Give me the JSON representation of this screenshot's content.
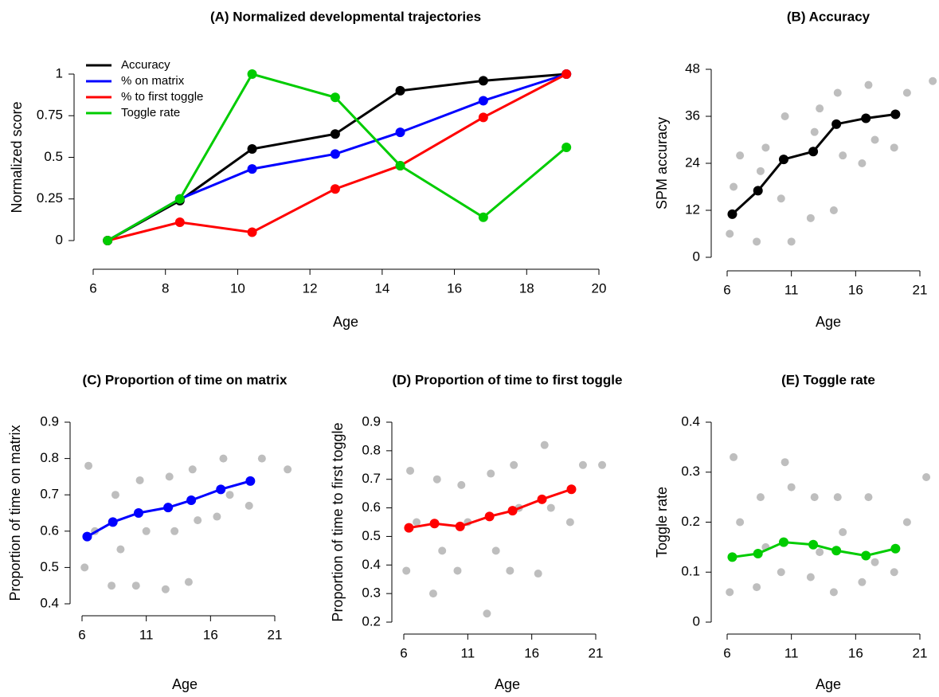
{
  "chart_data": [
    {
      "type": "line",
      "title": "(A) Normalized developmental trajectories",
      "xlabel": "Age",
      "ylabel": "Normalized score",
      "x": [
        6.4,
        8.4,
        10.4,
        12.7,
        14.5,
        16.8,
        19.1
      ],
      "series": [
        {
          "name": "Accuracy",
          "color": "#000000",
          "values": [
            0,
            0.24,
            0.55,
            0.64,
            0.9,
            0.96,
            1
          ]
        },
        {
          "name": "% on matrix",
          "color": "#0000ff",
          "values": [
            0,
            0.25,
            0.43,
            0.52,
            0.65,
            0.84,
            1
          ]
        },
        {
          "name": "% to first toggle",
          "color": "#ff0000",
          "values": [
            0,
            0.11,
            0.05,
            0.31,
            0.45,
            0.74,
            1
          ]
        },
        {
          "name": "Toggle rate",
          "color": "#00cc00",
          "values": [
            0,
            0.25,
            1,
            0.86,
            0.45,
            0.14,
            0.56
          ]
        }
      ],
      "xlim": [
        6,
        20
      ],
      "xticks": [
        6,
        8,
        10,
        12,
        14,
        16,
        18,
        20
      ],
      "ylim": [
        0,
        1
      ],
      "yticks": [
        0,
        0.25,
        0.5,
        0.75,
        1
      ],
      "legend": "top-left"
    },
    {
      "type": "scatter",
      "title": "(B) Accuracy",
      "xlabel": "Age",
      "ylabel": "SPM accuracy",
      "points": {
        "color": "#bebebe",
        "x": [
          6.2,
          6.5,
          7,
          8.3,
          8.6,
          9,
          10.2,
          10.5,
          11,
          12.5,
          12.8,
          13.2,
          14.3,
          14.6,
          15,
          16.5,
          17,
          17.5,
          19,
          20,
          22
        ],
        "values": [
          6,
          18,
          26,
          4,
          22,
          28,
          15,
          36,
          4,
          10,
          32,
          38,
          12,
          42,
          26,
          24,
          44,
          30,
          28,
          42,
          45
        ]
      },
      "x": [
        6.4,
        8.4,
        10.4,
        12.7,
        14.5,
        16.8,
        19.1
      ],
      "series": [
        {
          "color": "#000000",
          "values": [
            11,
            17,
            25,
            27,
            34,
            35.5,
            36.5
          ]
        }
      ],
      "xlim": [
        6,
        21
      ],
      "xticks": [
        6,
        11,
        16,
        21
      ],
      "ylim": [
        0,
        48
      ],
      "yticks": [
        0,
        12,
        24,
        36,
        48
      ]
    },
    {
      "type": "scatter",
      "title": "(C) Proportion of time on matrix",
      "xlabel": "Age",
      "ylabel": "Proportion of time on matrix",
      "points": {
        "color": "#bebebe",
        "x": [
          6.2,
          6.5,
          7,
          8.3,
          8.6,
          9,
          10.2,
          10.5,
          11,
          12.5,
          12.8,
          13.2,
          14.3,
          14.6,
          15,
          16.5,
          17,
          17.5,
          19,
          20,
          22
        ],
        "values": [
          0.5,
          0.78,
          0.6,
          0.45,
          0.7,
          0.55,
          0.45,
          0.74,
          0.6,
          0.44,
          0.75,
          0.6,
          0.46,
          0.77,
          0.63,
          0.64,
          0.8,
          0.7,
          0.67,
          0.8,
          0.77
        ]
      },
      "x": [
        6.4,
        8.4,
        10.4,
        12.7,
        14.5,
        16.8,
        19.1
      ],
      "series": [
        {
          "color": "#0000ff",
          "values": [
            0.585,
            0.625,
            0.65,
            0.665,
            0.685,
            0.715,
            0.738
          ]
        }
      ],
      "xlim": [
        6,
        21
      ],
      "xticks": [
        6,
        11,
        16,
        21
      ],
      "ylim": [
        0.4,
        0.9
      ],
      "yticks": [
        0.4,
        0.5,
        0.6,
        0.7,
        0.8,
        0.9
      ]
    },
    {
      "type": "scatter",
      "title": "(D) Proportion of time to first toggle",
      "xlabel": "Age",
      "ylabel": "Proportion of time to first toggle",
      "points": {
        "color": "#bebebe",
        "x": [
          6.2,
          6.5,
          7,
          8.3,
          8.6,
          9,
          10.2,
          10.5,
          11,
          12.5,
          12.8,
          13.2,
          14.3,
          14.6,
          15,
          16.5,
          17,
          17.5,
          19,
          20,
          21.5
        ],
        "values": [
          0.38,
          0.73,
          0.55,
          0.3,
          0.7,
          0.45,
          0.38,
          0.68,
          0.55,
          0.23,
          0.72,
          0.45,
          0.38,
          0.75,
          0.6,
          0.37,
          0.82,
          0.6,
          0.55,
          0.75,
          0.75
        ]
      },
      "x": [
        6.4,
        8.4,
        10.4,
        12.7,
        14.5,
        16.8,
        19.1
      ],
      "series": [
        {
          "color": "#ff0000",
          "values": [
            0.53,
            0.545,
            0.535,
            0.57,
            0.59,
            0.63,
            0.665
          ]
        }
      ],
      "xlim": [
        6,
        21
      ],
      "xticks": [
        6,
        11,
        16,
        21
      ],
      "ylim": [
        0.2,
        0.9
      ],
      "yticks": [
        0.2,
        0.3,
        0.4,
        0.5,
        0.6,
        0.7,
        0.8,
        0.9
      ]
    },
    {
      "type": "scatter",
      "title": "(E) Toggle rate",
      "xlabel": "Age",
      "ylabel": "Toggle rate",
      "points": {
        "color": "#bebebe",
        "x": [
          6.2,
          6.5,
          7,
          8.3,
          8.6,
          9,
          10.2,
          10.5,
          11,
          12.5,
          12.8,
          13.2,
          14.3,
          14.6,
          15,
          16.5,
          17,
          17.5,
          19,
          20,
          21.5
        ],
        "values": [
          0.06,
          0.33,
          0.2,
          0.07,
          0.25,
          0.15,
          0.1,
          0.32,
          0.27,
          0.09,
          0.25,
          0.14,
          0.06,
          0.25,
          0.18,
          0.08,
          0.25,
          0.12,
          0.1,
          0.2,
          0.29
        ]
      },
      "x": [
        6.4,
        8.4,
        10.4,
        12.7,
        14.5,
        16.8,
        19.1
      ],
      "series": [
        {
          "color": "#00cc00",
          "values": [
            0.13,
            0.137,
            0.16,
            0.155,
            0.143,
            0.133,
            0.147
          ]
        }
      ],
      "xlim": [
        6,
        21
      ],
      "xticks": [
        6,
        11,
        16,
        21
      ],
      "ylim": [
        0,
        0.4
      ],
      "yticks": [
        0,
        0.1,
        0.2,
        0.3,
        0.4
      ]
    }
  ]
}
